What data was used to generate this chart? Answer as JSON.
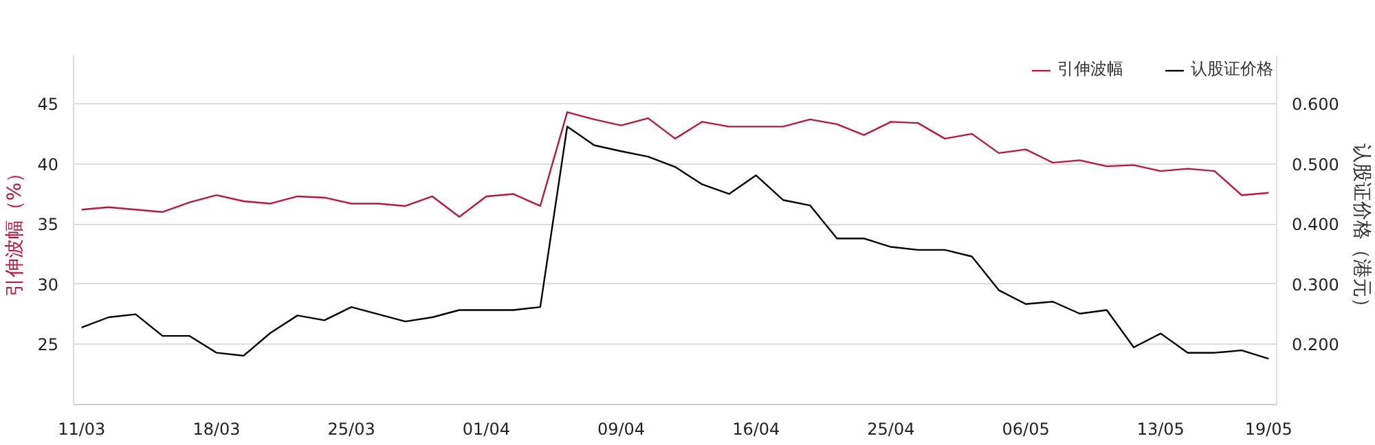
{
  "chart_data": {
    "type": "line",
    "categories": [
      "11/03",
      null,
      null,
      null,
      null,
      "18/03",
      null,
      null,
      null,
      null,
      "25/03",
      null,
      null,
      null,
      null,
      "01/04",
      null,
      null,
      null,
      null,
      "09/04",
      null,
      null,
      null,
      null,
      "16/04",
      null,
      null,
      null,
      null,
      "25/04",
      null,
      null,
      null,
      null,
      "06/05",
      null,
      null,
      null,
      null,
      "13/05",
      null,
      null,
      null,
      "19/05"
    ],
    "series": [
      {
        "name": "引伸波幅",
        "color": "#c0143c",
        "values": [
          36.2,
          36.4,
          36.2,
          36.0,
          36.8,
          37.4,
          36.9,
          36.7,
          37.3,
          37.2,
          36.7,
          36.7,
          36.5,
          37.3,
          35.6,
          37.3,
          37.5,
          36.5,
          44.3,
          43.7,
          43.2,
          43.8,
          42.1,
          43.5,
          43.1,
          43.1,
          43.1,
          43.7,
          43.3,
          42.4,
          43.5,
          43.4,
          42.1,
          42.5,
          40.9,
          41.2,
          40.1,
          40.3,
          39.8,
          39.9,
          39.4,
          39.6,
          39.4,
          37.4,
          37.6
        ]
      },
      {
        "name": "认股证价格",
        "color": "#000000",
        "axis": "y2",
        "values": [
          0.228,
          0.245,
          0.25,
          0.214,
          0.214,
          0.186,
          0.181,
          0.219,
          0.248,
          0.24,
          0.262,
          0.25,
          0.238,
          0.245,
          0.257,
          0.257,
          0.257,
          0.262,
          0.562,
          0.531,
          0.521,
          0.512,
          0.495,
          0.466,
          0.45,
          0.481,
          0.44,
          0.431,
          0.376,
          0.376,
          0.362,
          0.357,
          0.357,
          0.346,
          0.29,
          0.267,
          0.271,
          0.251,
          0.257,
          0.195,
          0.218,
          0.186,
          0.186,
          0.19,
          0.176
        ]
      }
    ],
    "ylabel": "引伸波幅（%）",
    "y2label": "认股证价格（港元）",
    "ylim": [
      20,
      49
    ],
    "yticks": [
      25,
      30,
      35,
      40,
      45
    ],
    "y2lim": [
      0.1,
      0.68
    ],
    "y2ticks": [
      {
        "value": 0.2,
        "label": "0.200"
      },
      {
        "value": 0.3,
        "label": "0.300"
      },
      {
        "value": 0.4,
        "label": "0.400"
      },
      {
        "value": 0.5,
        "label": "0.500"
      },
      {
        "value": 0.6,
        "label": "0.600"
      }
    ],
    "grid": "y",
    "legend": "top right",
    "marker": "none",
    "line_style": "solid"
  }
}
